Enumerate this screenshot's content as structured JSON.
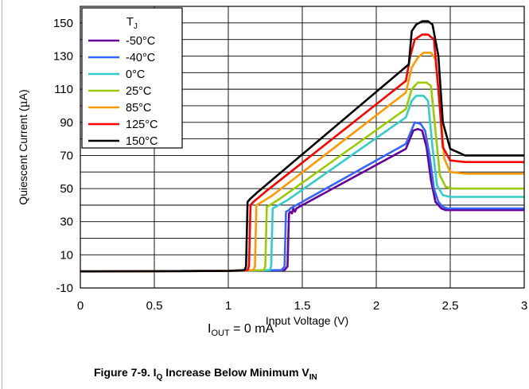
{
  "figure": {
    "caption_main": "Figure 7-9. I",
    "caption_sub1": "Q",
    "caption_mid": " Increase Below Minimum V",
    "caption_sub2": "IN",
    "condition_main": "I",
    "condition_sub": "OUT",
    "condition_rest": " = 0 mA"
  },
  "chart_data": {
    "type": "line",
    "xlabel": "Input Voltage (V)",
    "ylabel": "Quiescent Current (µA)",
    "ylabel_parts": [
      "Quiescent Current (",
      "µ",
      "A)"
    ],
    "xlim": [
      0,
      3
    ],
    "ylim": [
      -10,
      160
    ],
    "x_ticks": [
      0,
      0.5,
      1,
      1.5,
      2,
      2.5,
      3
    ],
    "x_tick_labels": [
      "0",
      "0.5",
      "1",
      "1.5",
      "2",
      "2.5",
      "3"
    ],
    "y_ticks": [
      -10,
      10,
      30,
      50,
      70,
      90,
      110,
      130,
      150
    ],
    "y_tick_labels": [
      "-10",
      "10",
      "30",
      "50",
      "70",
      "90",
      "110",
      "130",
      "150"
    ],
    "grid": true,
    "legend": {
      "title_main": "T",
      "title_sub": "J",
      "position": "top-left"
    },
    "series": [
      {
        "name": "-50°C",
        "color": "#660099",
        "points": [
          [
            0,
            0
          ],
          [
            1.0,
            0.3
          ],
          [
            1.38,
            0.8
          ],
          [
            1.4,
            3
          ],
          [
            1.41,
            35
          ],
          [
            1.42,
            36
          ],
          [
            1.43,
            35
          ],
          [
            1.44,
            38
          ],
          [
            1.45,
            36
          ],
          [
            1.46,
            38
          ],
          [
            1.5,
            40
          ],
          [
            2.2,
            74
          ],
          [
            2.25,
            85
          ],
          [
            2.28,
            86
          ],
          [
            2.31,
            85
          ],
          [
            2.34,
            75
          ],
          [
            2.37,
            55
          ],
          [
            2.4,
            42
          ],
          [
            2.44,
            38
          ],
          [
            2.47,
            37
          ],
          [
            3,
            37
          ]
        ]
      },
      {
        "name": "-40°C",
        "color": "#3366ff",
        "points": [
          [
            0,
            0
          ],
          [
            1.0,
            0.3
          ],
          [
            1.36,
            0.8
          ],
          [
            1.38,
            3
          ],
          [
            1.39,
            36
          ],
          [
            1.41,
            37
          ],
          [
            1.42,
            38
          ],
          [
            1.5,
            42
          ],
          [
            2.2,
            77
          ],
          [
            2.26,
            90
          ],
          [
            2.3,
            89
          ],
          [
            2.33,
            85
          ],
          [
            2.36,
            70
          ],
          [
            2.39,
            50
          ],
          [
            2.42,
            42
          ],
          [
            2.45,
            39
          ],
          [
            2.48,
            38
          ],
          [
            3,
            38
          ]
        ]
      },
      {
        "name": "0°C",
        "color": "#33cccc",
        "points": [
          [
            0,
            0
          ],
          [
            1.0,
            0.3
          ],
          [
            1.28,
            0.8
          ],
          [
            1.29,
            3
          ],
          [
            1.3,
            38
          ],
          [
            1.32,
            39
          ],
          [
            1.4,
            43
          ],
          [
            2.2,
            93
          ],
          [
            2.24,
            103
          ],
          [
            2.27,
            106
          ],
          [
            2.32,
            106
          ],
          [
            2.35,
            103
          ],
          [
            2.38,
            75
          ],
          [
            2.41,
            52
          ],
          [
            2.45,
            46
          ],
          [
            2.5,
            45
          ],
          [
            3,
            45
          ]
        ]
      },
      {
        "name": "25°C",
        "color": "#99cc00",
        "points": [
          [
            0,
            0
          ],
          [
            1.0,
            0.3
          ],
          [
            1.24,
            0.8
          ],
          [
            1.25,
            3
          ],
          [
            1.26,
            39
          ],
          [
            1.28,
            40
          ],
          [
            1.35,
            44
          ],
          [
            2.2,
            98
          ],
          [
            2.24,
            110
          ],
          [
            2.28,
            114
          ],
          [
            2.34,
            114
          ],
          [
            2.37,
            112
          ],
          [
            2.4,
            85
          ],
          [
            2.43,
            58
          ],
          [
            2.47,
            51
          ],
          [
            2.52,
            50
          ],
          [
            3,
            50
          ]
        ]
      },
      {
        "name": "85°C",
        "color": "#ff9900",
        "points": [
          [
            0,
            0
          ],
          [
            1.0,
            0.3
          ],
          [
            1.17,
            0.8
          ],
          [
            1.18,
            3
          ],
          [
            1.19,
            40
          ],
          [
            1.21,
            41
          ],
          [
            1.3,
            46
          ],
          [
            2.2,
            108
          ],
          [
            2.24,
            123
          ],
          [
            2.28,
            129
          ],
          [
            2.32,
            132
          ],
          [
            2.37,
            132
          ],
          [
            2.4,
            128
          ],
          [
            2.43,
            100
          ],
          [
            2.46,
            68
          ],
          [
            2.5,
            60
          ],
          [
            2.6,
            59
          ],
          [
            3,
            59
          ]
        ]
      },
      {
        "name": "125°C",
        "color": "#ff0000",
        "points": [
          [
            0,
            0
          ],
          [
            1.0,
            0.3
          ],
          [
            1.13,
            0.8
          ],
          [
            1.14,
            3
          ],
          [
            1.15,
            40
          ],
          [
            1.17,
            42
          ],
          [
            1.25,
            48
          ],
          [
            2.2,
            115
          ],
          [
            2.23,
            130
          ],
          [
            2.26,
            140
          ],
          [
            2.31,
            143
          ],
          [
            2.35,
            143
          ],
          [
            2.39,
            140
          ],
          [
            2.42,
            110
          ],
          [
            2.45,
            75
          ],
          [
            2.5,
            67
          ],
          [
            2.6,
            66
          ],
          [
            3,
            66
          ]
        ]
      },
      {
        "name": "150°C",
        "color": "#000000",
        "points": [
          [
            0,
            0
          ],
          [
            1.0,
            0.3
          ],
          [
            1.11,
            0.8
          ],
          [
            1.12,
            3
          ],
          [
            1.13,
            42
          ],
          [
            1.15,
            44
          ],
          [
            1.2,
            48
          ],
          [
            2.22,
            125
          ],
          [
            2.24,
            145
          ],
          [
            2.27,
            149
          ],
          [
            2.31,
            151
          ],
          [
            2.35,
            151
          ],
          [
            2.38,
            149
          ],
          [
            2.42,
            130
          ],
          [
            2.45,
            90
          ],
          [
            2.5,
            74
          ],
          [
            2.6,
            70
          ],
          [
            3,
            70
          ]
        ]
      }
    ]
  }
}
